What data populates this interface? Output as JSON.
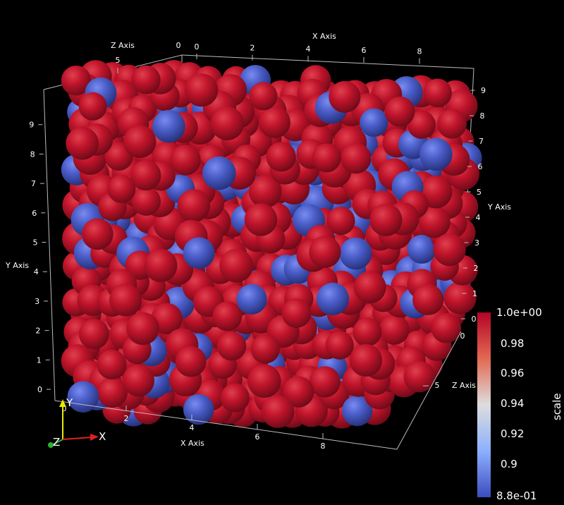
{
  "axes": {
    "x": {
      "title": "X Axis",
      "front_ticks": [
        "2",
        "4",
        "6",
        "8"
      ],
      "back_ticks": [
        "0",
        "2",
        "4",
        "6",
        "8"
      ]
    },
    "y": {
      "title": "Y Axis",
      "left_ticks": [
        "0",
        "1",
        "2",
        "3",
        "4",
        "5",
        "6",
        "7",
        "8",
        "9"
      ],
      "right_ticks": [
        "0",
        "1",
        "2",
        "3",
        "4",
        "5",
        "6",
        "7",
        "8",
        "9"
      ]
    },
    "z": {
      "title": "Z Axis",
      "top_ticks": [
        "0",
        "5"
      ],
      "right_ticks": [
        "0",
        "5"
      ]
    }
  },
  "colorbar": {
    "title": "scale",
    "labels": [
      "1.0e+00",
      "0.98",
      "0.96",
      "0.94",
      "0.92",
      "0.9",
      "8.8e-01"
    ],
    "min": 0.88,
    "max": 1.0,
    "colors": {
      "high": "#b40426",
      "mid": "#dddddd",
      "low": "#3b4cc0"
    }
  },
  "orientation_widget": {
    "x": "X",
    "y": "Y",
    "z": "Z"
  },
  "sphere_colors": {
    "red": "#c0142b",
    "blue": "#4a5dc8"
  }
}
